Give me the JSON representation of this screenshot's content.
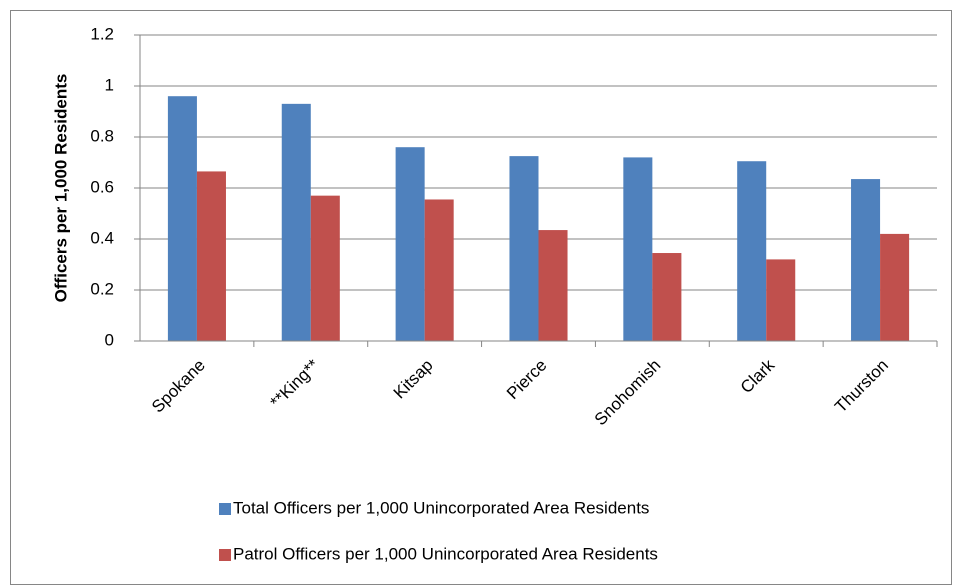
{
  "chart_data": {
    "type": "bar",
    "y_label": "Officers per 1,000 Residents",
    "categories": [
      "Spokane",
      "**King**",
      "Kitsap",
      "Pierce",
      "Snohomish",
      "Clark",
      "Thurston"
    ],
    "series": [
      {
        "name": "Total Officers per 1,000 Unincorporated Area Residents",
        "color": "#4f81bd",
        "values": [
          0.96,
          0.93,
          0.76,
          0.725,
          0.72,
          0.705,
          0.635
        ]
      },
      {
        "name": "Patrol Officers per 1,000 Unincorporated Area Residents",
        "color": "#c0504d",
        "values": [
          0.665,
          0.57,
          0.555,
          0.435,
          0.345,
          0.32,
          0.42
        ]
      }
    ],
    "ylim": [
      0,
      1.2
    ],
    "yticks": [
      0,
      0.2,
      0.4,
      0.6,
      0.8,
      1,
      1.2
    ],
    "grid": true,
    "legend": "bottom"
  }
}
